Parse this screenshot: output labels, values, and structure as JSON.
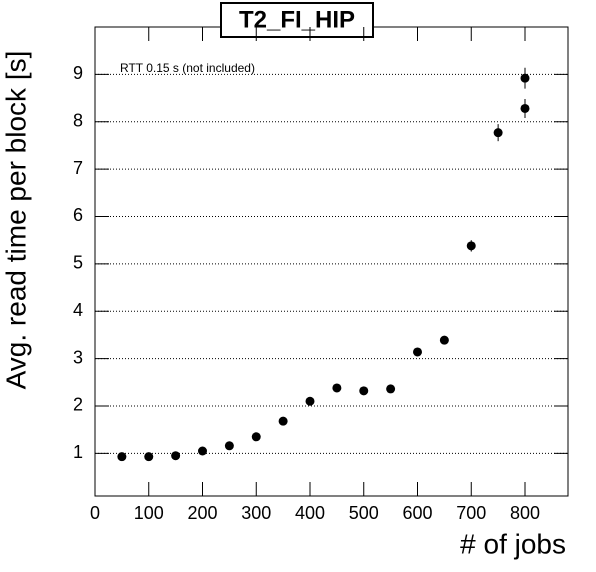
{
  "chart_data": {
    "type": "scatter",
    "title": "T2_FI_HIP",
    "annotation": "RTT 0.15 s (not included)",
    "x_label": "# of jobs",
    "y_label": "Avg. read time per block [s]",
    "x": [
      50,
      100,
      150,
      200,
      250,
      300,
      350,
      400,
      450,
      500,
      550,
      600,
      650,
      700,
      750,
      800,
      800
    ],
    "values": [
      0.93,
      0.93,
      0.95,
      1.05,
      1.16,
      1.35,
      1.68,
      2.1,
      2.38,
      2.32,
      2.36,
      3.14,
      3.39,
      5.38,
      7.77,
      8.28,
      8.92
    ],
    "errors": [
      0.04,
      0.04,
      0.04,
      0.05,
      0.05,
      0.05,
      0.05,
      0.06,
      0.06,
      0.06,
      0.06,
      0.07,
      0.07,
      0.12,
      0.18,
      0.2,
      0.22
    ],
    "color": "#000000",
    "xlim": [
      0,
      880
    ],
    "xticks": [
      0,
      100,
      200,
      300,
      400,
      500,
      600,
      700,
      800
    ],
    "ylim": [
      0.1,
      10
    ],
    "yticks": [
      1,
      2,
      3,
      4,
      5,
      6,
      7,
      8,
      9
    ],
    "grid": true
  }
}
